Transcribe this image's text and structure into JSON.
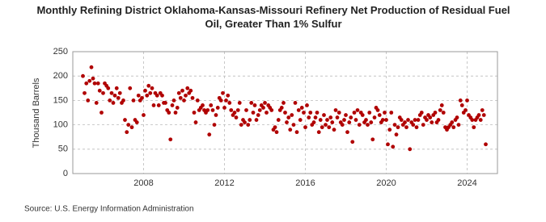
{
  "chart_data": {
    "type": "scatter",
    "title": "Monthly Refining District Oklahoma-Kansas-Missouri Refinery Net Production of Residual Fuel Oil, Greater Than 1% Sulfur",
    "y_label": "Thousand Barrels",
    "source": "Source: U.S. Energy Information Administration",
    "xlim": [
      2004.5,
      2025.5
    ],
    "xticks": [
      2008,
      2012,
      2016,
      2020,
      2024
    ],
    "ylim": [
      0,
      250
    ],
    "yticks": [
      0,
      50,
      100,
      150,
      200,
      250
    ],
    "grid": true,
    "series": [
      {
        "color": "#b00000",
        "x": [
          2005.0,
          2005.08,
          2005.17,
          2005.25,
          2005.33,
          2005.42,
          2005.5,
          2005.58,
          2005.67,
          2005.75,
          2005.83,
          2005.92,
          2006.0,
          2006.08,
          2006.17,
          2006.25,
          2006.33,
          2006.42,
          2006.5,
          2006.58,
          2006.67,
          2006.75,
          2006.83,
          2006.92,
          2007.0,
          2007.08,
          2007.17,
          2007.25,
          2007.33,
          2007.42,
          2007.5,
          2007.58,
          2007.67,
          2007.75,
          2007.83,
          2007.92,
          2008.0,
          2008.08,
          2008.17,
          2008.25,
          2008.33,
          2008.42,
          2008.5,
          2008.58,
          2008.67,
          2008.75,
          2008.83,
          2008.92,
          2009.0,
          2009.08,
          2009.17,
          2009.25,
          2009.33,
          2009.42,
          2009.5,
          2009.58,
          2009.67,
          2009.75,
          2009.83,
          2009.92,
          2010.0,
          2010.08,
          2010.17,
          2010.25,
          2010.33,
          2010.42,
          2010.5,
          2010.58,
          2010.67,
          2010.75,
          2010.83,
          2010.92,
          2011.0,
          2011.08,
          2011.17,
          2011.25,
          2011.33,
          2011.42,
          2011.5,
          2011.58,
          2011.67,
          2011.75,
          2011.83,
          2011.92,
          2012.0,
          2012.08,
          2012.17,
          2012.25,
          2012.33,
          2012.42,
          2012.5,
          2012.58,
          2012.67,
          2012.75,
          2012.83,
          2012.92,
          2013.0,
          2013.08,
          2013.17,
          2013.25,
          2013.33,
          2013.42,
          2013.5,
          2013.58,
          2013.67,
          2013.75,
          2013.83,
          2013.92,
          2014.0,
          2014.08,
          2014.17,
          2014.25,
          2014.33,
          2014.42,
          2014.5,
          2014.58,
          2014.67,
          2014.75,
          2014.83,
          2014.92,
          2015.0,
          2015.08,
          2015.17,
          2015.25,
          2015.33,
          2015.42,
          2015.5,
          2015.58,
          2015.67,
          2015.75,
          2015.83,
          2015.92,
          2016.0,
          2016.08,
          2016.17,
          2016.25,
          2016.33,
          2016.42,
          2016.5,
          2016.58,
          2016.67,
          2016.75,
          2016.83,
          2016.92,
          2017.0,
          2017.08,
          2017.17,
          2017.25,
          2017.33,
          2017.42,
          2017.5,
          2017.58,
          2017.67,
          2017.75,
          2017.83,
          2017.92,
          2018.0,
          2018.08,
          2018.17,
          2018.25,
          2018.33,
          2018.42,
          2018.5,
          2018.58,
          2018.67,
          2018.75,
          2018.83,
          2018.92,
          2019.0,
          2019.08,
          2019.17,
          2019.25,
          2019.33,
          2019.42,
          2019.5,
          2019.58,
          2019.67,
          2019.75,
          2019.83,
          2019.92,
          2020.0,
          2020.08,
          2020.17,
          2020.25,
          2020.33,
          2020.42,
          2020.5,
          2020.58,
          2020.67,
          2020.75,
          2020.83,
          2020.92,
          2021.0,
          2021.08,
          2021.17,
          2021.25,
          2021.33,
          2021.42,
          2021.5,
          2021.58,
          2021.67,
          2021.75,
          2021.83,
          2021.92,
          2022.0,
          2022.08,
          2022.17,
          2022.25,
          2022.33,
          2022.42,
          2022.5,
          2022.58,
          2022.67,
          2022.75,
          2022.83,
          2022.92,
          2023.0,
          2023.08,
          2023.17,
          2023.25,
          2023.33,
          2023.42,
          2023.5,
          2023.58,
          2023.67,
          2023.75,
          2023.83,
          2023.92,
          2024.0,
          2024.08,
          2024.17,
          2024.25,
          2024.33,
          2024.42,
          2024.5,
          2024.58,
          2024.67,
          2024.75,
          2024.83,
          2024.92
        ],
        "values": [
          200,
          165,
          185,
          150,
          190,
          218,
          195,
          185,
          145,
          185,
          170,
          125,
          165,
          185,
          180,
          175,
          150,
          165,
          145,
          160,
          175,
          155,
          165,
          145,
          150,
          110,
          85,
          100,
          175,
          95,
          150,
          110,
          105,
          160,
          150,
          155,
          120,
          170,
          160,
          180,
          165,
          175,
          140,
          165,
          160,
          140,
          165,
          160,
          145,
          145,
          130,
          125,
          70,
          140,
          150,
          125,
          135,
          165,
          155,
          170,
          150,
          160,
          175,
          165,
          170,
          155,
          125,
          105,
          150,
          130,
          135,
          140,
          130,
          125,
          130,
          80,
          140,
          130,
          100,
          120,
          135,
          155,
          150,
          165,
          135,
          150,
          160,
          145,
          130,
          120,
          125,
          115,
          130,
          145,
          100,
          110,
          105,
          130,
          100,
          110,
          145,
          125,
          140,
          110,
          120,
          130,
          140,
          135,
          145,
          125,
          140,
          135,
          130,
          90,
          95,
          85,
          110,
          130,
          135,
          145,
          125,
          105,
          115,
          90,
          120,
          100,
          145,
          85,
          130,
          110,
          135,
          125,
          95,
          140,
          115,
          125,
          100,
          105,
          115,
          125,
          85,
          110,
          95,
          120,
          100,
          110,
          95,
          115,
          105,
          90,
          130,
          115,
          125,
          105,
          100,
          110,
          120,
          85,
          105,
          115,
          65,
          125,
          110,
          130,
          100,
          125,
          120,
          105,
          110,
          100,
          125,
          105,
          70,
          115,
          135,
          130,
          120,
          105,
          110,
          125,
          110,
          60,
          90,
          125,
          55,
          100,
          80,
          95,
          115,
          110,
          100,
          105,
          95,
          110,
          50,
          105,
          100,
          110,
          95,
          110,
          120,
          125,
          100,
          115,
          110,
          120,
          115,
          105,
          120,
          125,
          105,
          110,
          130,
          140,
          125,
          95,
          90,
          95,
          100,
          105,
          95,
          110,
          115,
          100,
          150,
          140,
          125,
          130,
          150,
          120,
          115,
          110,
          95,
          110,
          115,
          120,
          110,
          130,
          120,
          60
        ]
      }
    ]
  }
}
